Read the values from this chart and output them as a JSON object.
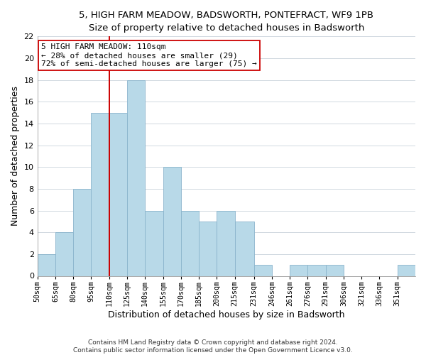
{
  "title": "5, HIGH FARM MEADOW, BADSWORTH, PONTEFRACT, WF9 1PB",
  "subtitle": "Size of property relative to detached houses in Badsworth",
  "xlabel": "Distribution of detached houses by size in Badsworth",
  "ylabel": "Number of detached properties",
  "bin_labels": [
    "50sqm",
    "65sqm",
    "80sqm",
    "95sqm",
    "110sqm",
    "125sqm",
    "140sqm",
    "155sqm",
    "170sqm",
    "185sqm",
    "200sqm",
    "215sqm",
    "231sqm",
    "246sqm",
    "261sqm",
    "276sqm",
    "291sqm",
    "306sqm",
    "321sqm",
    "336sqm",
    "351sqm"
  ],
  "bin_edges": [
    50,
    65,
    80,
    95,
    110,
    125,
    140,
    155,
    170,
    185,
    200,
    215,
    231,
    246,
    261,
    276,
    291,
    306,
    321,
    336,
    351,
    366
  ],
  "counts": [
    2,
    4,
    8,
    15,
    15,
    18,
    6,
    10,
    6,
    5,
    6,
    5,
    1,
    0,
    1,
    1,
    1,
    0,
    0,
    0,
    1
  ],
  "bar_color": "#b8d9e8",
  "bar_edge_color": "#8ab4cc",
  "reference_line_x": 110,
  "reference_line_color": "#cc0000",
  "annotation_line1": "5 HIGH FARM MEADOW: 110sqm",
  "annotation_line2": "← 28% of detached houses are smaller (29)",
  "annotation_line3": "72% of semi-detached houses are larger (75) →",
  "annotation_box_color": "#ffffff",
  "annotation_box_edge_color": "#cc0000",
  "ylim": [
    0,
    22
  ],
  "tick_positions": [
    50,
    65,
    80,
    95,
    110,
    125,
    140,
    155,
    170,
    185,
    200,
    215,
    231,
    246,
    261,
    276,
    291,
    306,
    321,
    336,
    351
  ],
  "footer_line1": "Contains HM Land Registry data © Crown copyright and database right 2024.",
  "footer_line2": "Contains public sector information licensed under the Open Government Licence v3.0.",
  "background_color": "#ffffff",
  "grid_color": "#d0d8e0"
}
